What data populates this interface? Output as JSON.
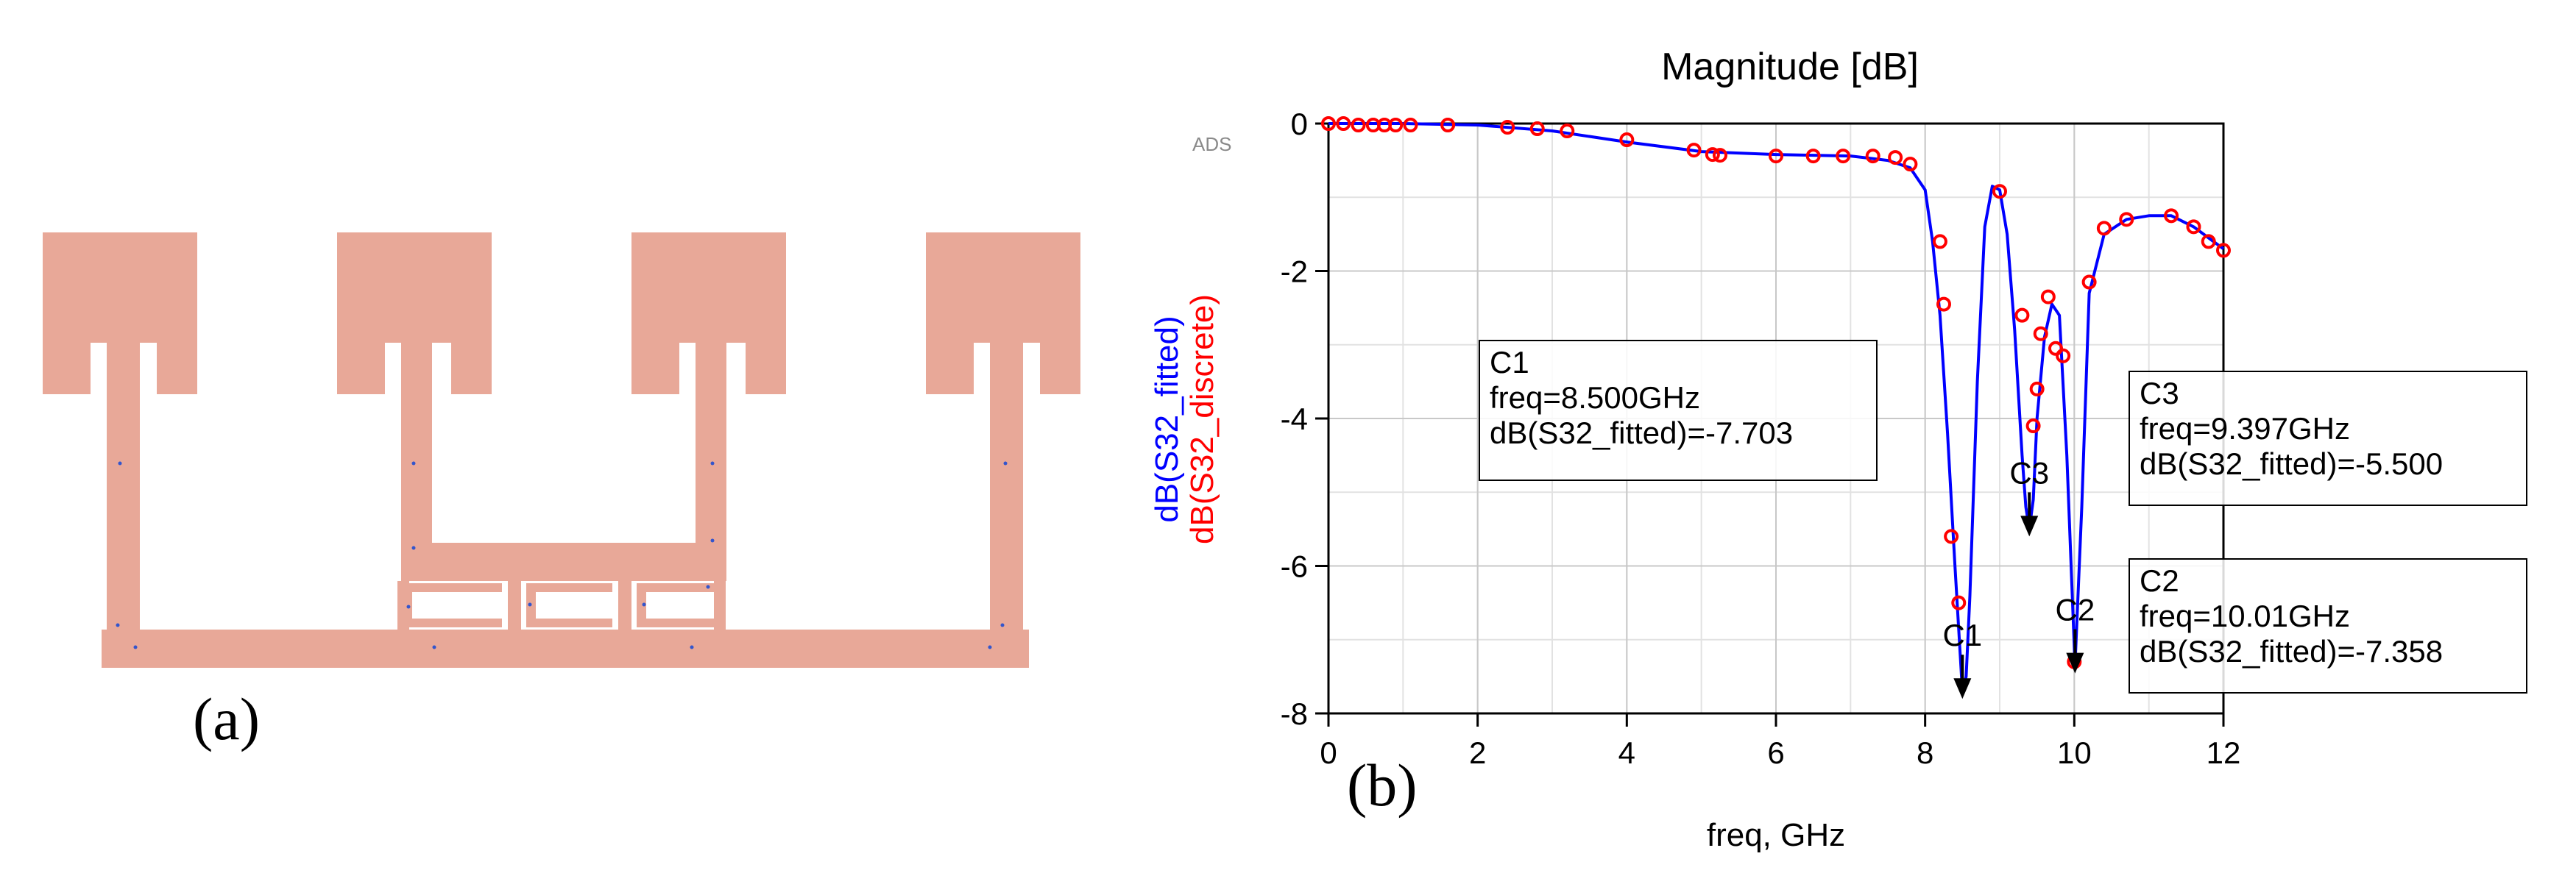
{
  "panel_a": {
    "label": "(a)",
    "layout_color": "#e8a898"
  },
  "panel_b": {
    "label": "(b)",
    "watermark": "ADS"
  },
  "chart_data": {
    "type": "line",
    "title": "Magnitude [dB]",
    "xlabel": "freq, GHz",
    "ylabel_series": [
      "dB(S32_fitted)",
      "dB(S32_discrete)"
    ],
    "xlim": [
      0,
      12
    ],
    "ylim": [
      -8,
      0
    ],
    "xticks": [
      0,
      2,
      4,
      6,
      8,
      10,
      12
    ],
    "yticks": [
      0,
      -2,
      -4,
      -6,
      -8
    ],
    "grid": true,
    "colors": {
      "fitted": "#0000ff",
      "discrete": "#ff0000"
    },
    "series": [
      {
        "name": "dB(S32_fitted)",
        "style": "line",
        "x": [
          0,
          1,
          2,
          3,
          4,
          5,
          6,
          7,
          7.5,
          7.8,
          8.0,
          8.1,
          8.2,
          8.3,
          8.4,
          8.5,
          8.55,
          8.6,
          8.7,
          8.8,
          8.9,
          9.0,
          9.1,
          9.2,
          9.3,
          9.35,
          9.397,
          9.45,
          9.5,
          9.6,
          9.7,
          9.8,
          9.9,
          10.01,
          10.1,
          10.2,
          10.4,
          10.7,
          11.0,
          11.3,
          11.6,
          11.8,
          12
        ],
        "y": [
          0,
          0,
          -0.02,
          -0.1,
          -0.25,
          -0.38,
          -0.42,
          -0.44,
          -0.5,
          -0.6,
          -0.9,
          -1.6,
          -2.6,
          -4.2,
          -6.0,
          -7.703,
          -7.5,
          -6.4,
          -3.5,
          -1.4,
          -0.85,
          -0.9,
          -1.5,
          -2.8,
          -4.5,
          -5.2,
          -5.5,
          -5.1,
          -4.0,
          -2.9,
          -2.45,
          -2.6,
          -4.5,
          -7.358,
          -5.2,
          -2.3,
          -1.5,
          -1.3,
          -1.25,
          -1.25,
          -1.4,
          -1.55,
          -1.7
        ]
      },
      {
        "name": "dB(S32_discrete)",
        "style": "markers",
        "x": [
          0,
          0.2,
          0.4,
          0.6,
          0.75,
          0.9,
          1.1,
          1.6,
          2.4,
          2.8,
          3.2,
          4.0,
          4.9,
          5.15,
          5.25,
          6.0,
          6.5,
          6.9,
          7.3,
          7.6,
          7.8,
          8.2,
          8.25,
          8.35,
          8.45,
          9.0,
          9.3,
          9.45,
          9.5,
          9.55,
          9.65,
          9.75,
          9.85,
          10.0,
          10.2,
          10.4,
          10.7,
          11.3,
          11.6,
          11.8,
          12.0
        ],
        "y": [
          0,
          0,
          -0.02,
          -0.02,
          -0.02,
          -0.02,
          -0.02,
          -0.02,
          -0.05,
          -0.07,
          -0.1,
          -0.22,
          -0.36,
          -0.42,
          -0.43,
          -0.44,
          -0.44,
          -0.44,
          -0.44,
          -0.46,
          -0.55,
          -1.6,
          -2.45,
          -5.6,
          -6.5,
          -0.92,
          -2.6,
          -4.1,
          -3.6,
          -2.85,
          -2.35,
          -3.05,
          -3.15,
          -7.3,
          -2.15,
          -1.42,
          -1.3,
          -1.25,
          -1.4,
          -1.6,
          -1.72
        ]
      }
    ],
    "markers": [
      {
        "name": "C1",
        "x": 8.5,
        "y": -7.703,
        "lines": [
          "C1",
          "freq=8.500GHz",
          "dB(S32_fitted)=-7.703"
        ]
      },
      {
        "name": "C3",
        "x": 9.397,
        "y": -5.5,
        "lines": [
          "C3",
          "freq=9.397GHz",
          "dB(S32_fitted)=-5.500"
        ]
      },
      {
        "name": "C2",
        "x": 10.01,
        "y": -7.358,
        "lines": [
          "C2",
          "freq=10.01GHz",
          "dB(S32_fitted)=-7.358"
        ]
      }
    ]
  }
}
